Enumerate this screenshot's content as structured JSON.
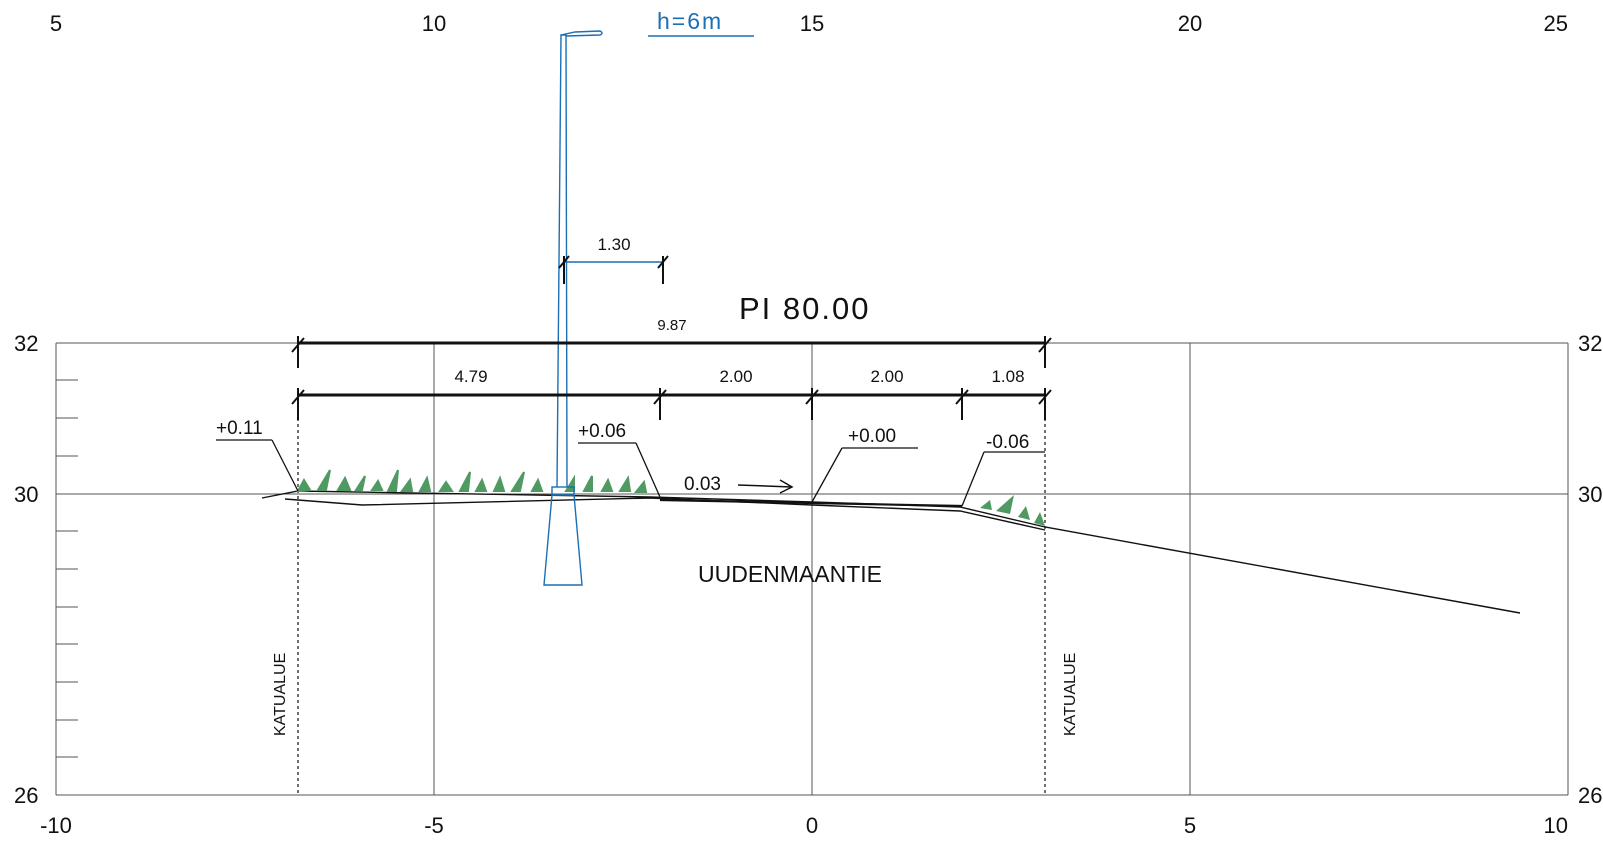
{
  "section": {
    "title": "PI 80.00",
    "road_name": "UUDENMAANTIE",
    "zone_labels": [
      "KATUALUE",
      "KATUALUE"
    ],
    "slope_label": "0.03",
    "pole_height_label": "h=6m"
  },
  "axes": {
    "top_ticks": [
      "5",
      "10",
      "15",
      "20",
      "25"
    ],
    "bottom_ticks": [
      "-10",
      "-5",
      "0",
      "5",
      "10"
    ],
    "left_ticks": [
      "32",
      "30",
      "26"
    ],
    "right_ticks": [
      "32",
      "30",
      "26"
    ]
  },
  "dimensions": {
    "total": "9.87",
    "segments": [
      "4.79",
      "2.00",
      "2.00",
      "1.08"
    ],
    "pole_offset": "1.30"
  },
  "elevations": [
    "+0.11",
    "+0.06",
    "+0.00",
    "-0.06"
  ],
  "colors": {
    "line": "#111111",
    "pole": "#1a6fb5",
    "grass": "#4f9a62",
    "grid": "#555555"
  }
}
